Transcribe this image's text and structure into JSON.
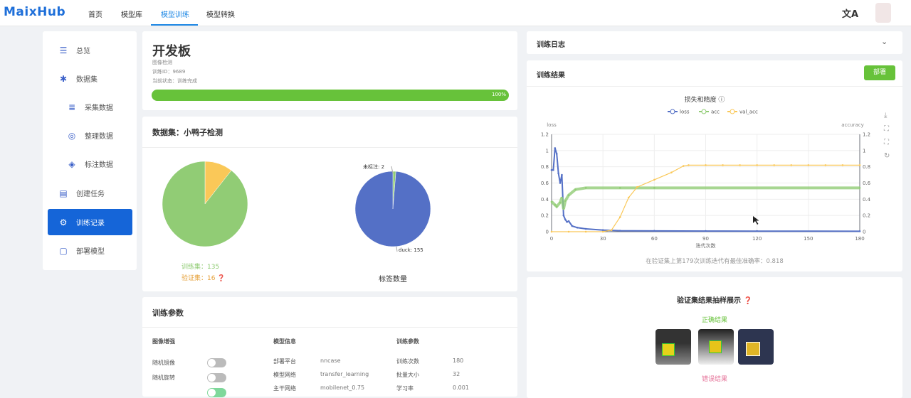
{
  "header": {
    "logo": "MaixHub",
    "nav": [
      "首页",
      "模型库",
      "模型训练",
      "模型转换"
    ],
    "active_nav": "模型训练",
    "translate_icon": "translate-icon",
    "avatar_icon": "avatar"
  },
  "sidebar": {
    "items": [
      {
        "label": "总览",
        "icon": "list-icon"
      },
      {
        "label": "数据集",
        "icon": "snowflake-icon"
      },
      {
        "label": "采集数据",
        "icon": "database-icon"
      },
      {
        "label": "整理数据",
        "icon": "organize-icon"
      },
      {
        "label": "标注数据",
        "icon": "tag-icon"
      },
      {
        "label": "创建任务",
        "icon": "task-icon"
      },
      {
        "label": "训练记录",
        "icon": "gear-icon",
        "active": true
      },
      {
        "label": "部署模型",
        "icon": "box-icon"
      }
    ]
  },
  "task": {
    "title": "开发板",
    "type": "图像检测",
    "train_id": "训练ID：9689",
    "status": "当前状态：训练完成",
    "progress": 100,
    "progress_label": "100%",
    "progress_color": "#67c23a"
  },
  "dataset": {
    "title": "数据集：小鸭子检测",
    "train_label": "训练集：",
    "train_count": "135",
    "val_label": "验证集：",
    "val_count": "16",
    "train_color": "#91cc75",
    "val_color": "#fac858",
    "label_pie": {
      "title": "标签数量",
      "slices": [
        {
          "name": "duck",
          "value": 155,
          "label": "duck: 155",
          "color": "#5470c6"
        },
        {
          "name": "未标注",
          "value": 2,
          "label": "未标注: 2",
          "color": "#91cc75"
        }
      ]
    }
  },
  "params": {
    "title": "训练参数",
    "aug": {
      "title": "图像增强",
      "items": [
        {
          "label": "随机镜像",
          "on": false
        },
        {
          "label": "随机旋转",
          "on": false
        }
      ]
    },
    "model": {
      "title": "模型信息",
      "rows": [
        [
          "部署平台",
          "nncase"
        ],
        [
          "模型网络",
          "transfer_learning"
        ],
        [
          "主干网络",
          "mobilenet_0.75"
        ]
      ]
    },
    "train": {
      "title": "训练参数",
      "rows": [
        [
          "训练次数",
          "180"
        ],
        [
          "批量大小",
          "32"
        ],
        [
          "学习率",
          "0.001"
        ]
      ]
    }
  },
  "log": {
    "title": "训练日志"
  },
  "results": {
    "title": "训练结果",
    "deploy_button": "部署",
    "summary": "在验证集上第179次训练迭代有最佳准确率：0.818"
  },
  "samples": {
    "title": "验证集结果抽样展示",
    "correct_label": "正确结果",
    "wrong_label": "错误结果"
  },
  "chart_data": {
    "type": "line",
    "title": "损失和精度",
    "xlabel": "迭代次数",
    "ylabel": "loss",
    "ylabel_right": "accuracy",
    "xlim": [
      0,
      180
    ],
    "ylim": [
      0,
      1.2
    ],
    "ylim_right": [
      0,
      1.2
    ],
    "xticks": [
      "0",
      "30",
      "60",
      "90",
      "120",
      "150",
      "180"
    ],
    "yticks": [
      "0",
      "0.2",
      "0.4",
      "0.6",
      "0.8",
      "1",
      "1.2"
    ],
    "grid": true,
    "legend": "top",
    "series": [
      {
        "name": "loss",
        "color": "#5470c6",
        "axis": "left",
        "points": [
          [
            0,
            0.76
          ],
          [
            1,
            0.76
          ],
          [
            2,
            1.03
          ],
          [
            3,
            0.96
          ],
          [
            4,
            0.72
          ],
          [
            5,
            0.6
          ],
          [
            6,
            0.7
          ],
          [
            7,
            0.2
          ],
          [
            8,
            0.15
          ],
          [
            9,
            0.12
          ],
          [
            10,
            0.13
          ],
          [
            12,
            0.07
          ],
          [
            15,
            0.05
          ],
          [
            20,
            0.035
          ],
          [
            30,
            0.02
          ],
          [
            40,
            0.012
          ],
          [
            60,
            0.01
          ],
          [
            90,
            0.008
          ],
          [
            120,
            0.007
          ],
          [
            180,
            0.006
          ]
        ]
      },
      {
        "name": "acc",
        "color": "#91cc75",
        "axis": "right",
        "points": [
          [
            0,
            0.37
          ],
          [
            2,
            0.33
          ],
          [
            3,
            0.31
          ],
          [
            5,
            0.36
          ],
          [
            6,
            0.42
          ],
          [
            7,
            0.28
          ],
          [
            8,
            0.38
          ],
          [
            10,
            0.45
          ],
          [
            14,
            0.52
          ],
          [
            20,
            0.54
          ],
          [
            40,
            0.54
          ],
          [
            60,
            0.54
          ],
          [
            180,
            0.54
          ]
        ]
      },
      {
        "name": "val_acc",
        "color": "#fac858",
        "axis": "right",
        "points": [
          [
            0,
            0
          ],
          [
            10,
            0
          ],
          [
            20,
            0
          ],
          [
            30,
            0
          ],
          [
            35,
            0.02
          ],
          [
            40,
            0.18
          ],
          [
            45,
            0.42
          ],
          [
            50,
            0.55
          ],
          [
            60,
            0.64
          ],
          [
            70,
            0.73
          ],
          [
            77,
            0.81
          ],
          [
            80,
            0.82
          ],
          [
            90,
            0.82
          ],
          [
            100,
            0.82
          ],
          [
            110,
            0.82
          ],
          [
            120,
            0.82
          ],
          [
            130,
            0.82
          ],
          [
            140,
            0.82
          ],
          [
            150,
            0.82
          ],
          [
            160,
            0.82
          ],
          [
            170,
            0.82
          ],
          [
            180,
            0.82
          ]
        ]
      }
    ]
  }
}
